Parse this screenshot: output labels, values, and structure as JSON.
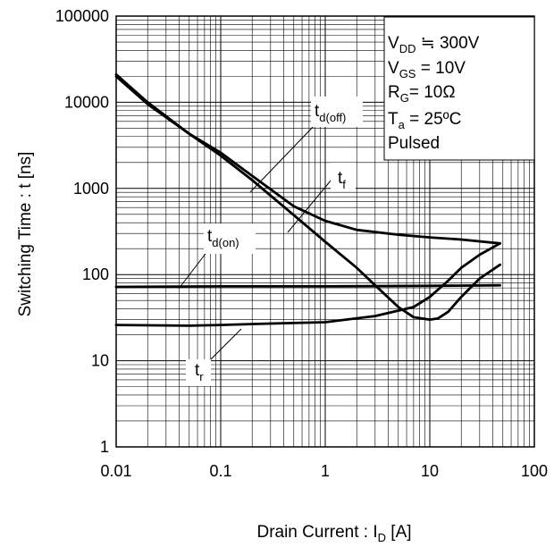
{
  "chart_data": {
    "type": "line",
    "title": "",
    "xlabel": {
      "main": "Drain Current : I",
      "sub": "D",
      "tail": " [A]"
    },
    "ylabel": "Switching Time : t [ns]",
    "xscale": "log",
    "yscale": "log",
    "xlim": [
      0.01,
      100
    ],
    "ylim": [
      1,
      100000
    ],
    "grid": true,
    "x_ticks": [
      "0.01",
      "0.1",
      "1",
      "10",
      "100"
    ],
    "y_ticks": [
      "1",
      "10",
      "100",
      "1000",
      "10000",
      "100000"
    ],
    "conditions": [
      {
        "main": "V",
        "sub": "DD",
        "tail": " ≒ 300V"
      },
      {
        "main": "V",
        "sub": "GS",
        "tail": " = 10V"
      },
      {
        "main": "R",
        "sub": "G",
        "tail": "= 10Ω"
      },
      {
        "main": "T",
        "sub": "a",
        "tail": " = 25ºC"
      },
      {
        "main": "Pulsed",
        "sub": "",
        "tail": ""
      }
    ],
    "series": [
      {
        "name": {
          "main": "t",
          "sub": "d(off)"
        },
        "x": [
          0.01,
          0.02,
          0.05,
          0.1,
          0.2,
          0.5,
          1,
          2,
          5,
          10,
          20,
          47
        ],
        "y": [
          20000,
          9500,
          4300,
          2600,
          1400,
          620,
          420,
          330,
          290,
          270,
          255,
          230
        ]
      },
      {
        "name": {
          "main": "t",
          "sub": "f"
        },
        "x": [
          0.01,
          0.02,
          0.05,
          0.1,
          0.2,
          0.5,
          1,
          2,
          3,
          5,
          7,
          10,
          12,
          15,
          20,
          30,
          47
        ],
        "y": [
          21000,
          10000,
          4300,
          2400,
          1250,
          490,
          240,
          120,
          75,
          42,
          32,
          30,
          31,
          37,
          55,
          90,
          130
        ]
      },
      {
        "name": {
          "main": "t",
          "sub": "d(on)"
        },
        "x": [
          0.01,
          0.1,
          1,
          10,
          47
        ],
        "y": [
          72,
          73,
          73,
          74,
          75
        ]
      },
      {
        "name": {
          "main": "t",
          "sub": "r"
        },
        "x": [
          0.01,
          0.05,
          0.1,
          0.3,
          1,
          3,
          7,
          10,
          15,
          20,
          30,
          47
        ],
        "y": [
          26,
          25.5,
          26,
          27,
          28,
          33,
          42,
          55,
          85,
          120,
          170,
          230
        ]
      }
    ]
  }
}
